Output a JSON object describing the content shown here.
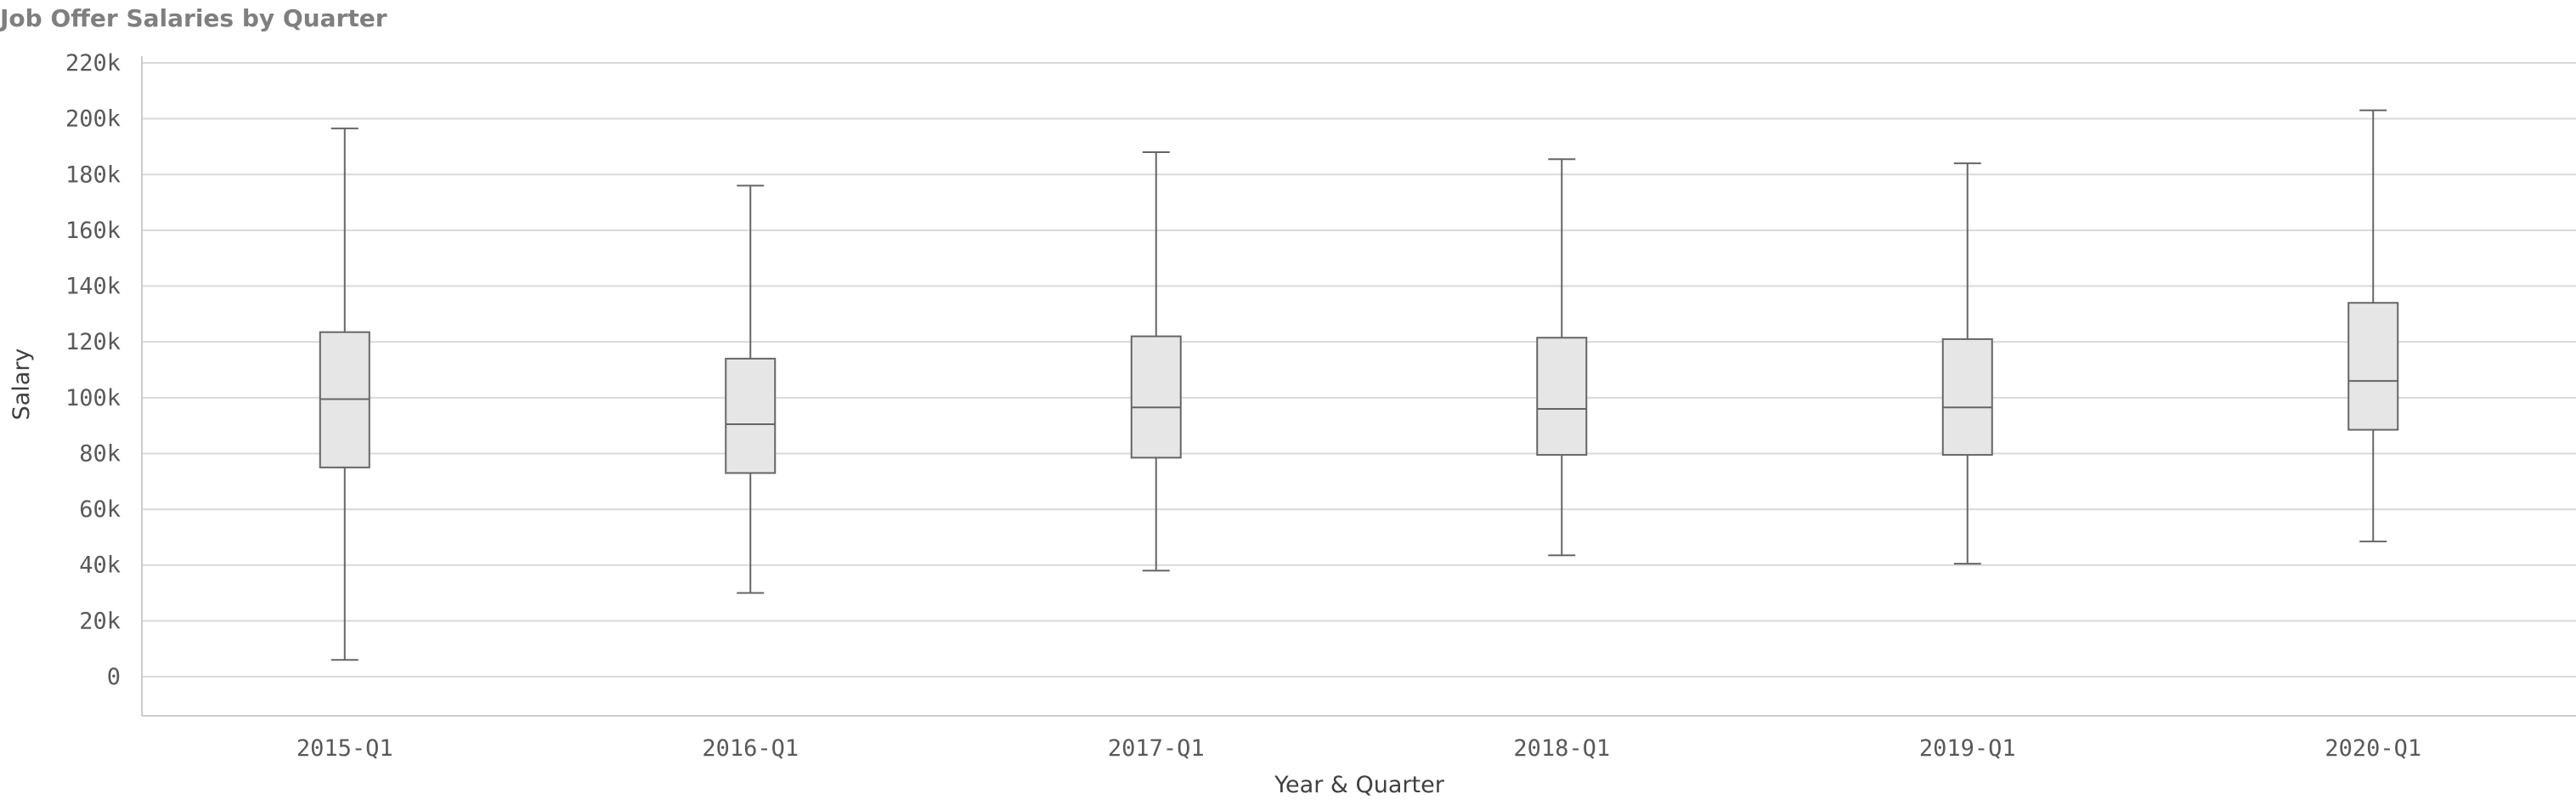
{
  "chart_data": {
    "type": "boxplot",
    "title": "Job Offer Salaries by Quarter",
    "xlabel": "Year & Quarter",
    "ylabel": "Salary",
    "ylim": [
      0,
      220000
    ],
    "yticks": [
      {
        "value": 0,
        "label": "0"
      },
      {
        "value": 20000,
        "label": "20k"
      },
      {
        "value": 40000,
        "label": "40k"
      },
      {
        "value": 60000,
        "label": "60k"
      },
      {
        "value": 80000,
        "label": "80k"
      },
      {
        "value": 100000,
        "label": "100k"
      },
      {
        "value": 120000,
        "label": "120k"
      },
      {
        "value": 140000,
        "label": "140k"
      },
      {
        "value": 160000,
        "label": "160k"
      },
      {
        "value": 180000,
        "label": "180k"
      },
      {
        "value": 200000,
        "label": "200k"
      },
      {
        "value": 220000,
        "label": "220k"
      }
    ],
    "grid": true,
    "categories": [
      "2015-Q1",
      "2016-Q1",
      "2017-Q1",
      "2018-Q1",
      "2019-Q1",
      "2020-Q1"
    ],
    "boxes": [
      {
        "min": 6000,
        "q1": 75000,
        "median": 99500,
        "q3": 123500,
        "max": 196500
      },
      {
        "min": 30000,
        "q1": 73000,
        "median": 90500,
        "q3": 114000,
        "max": 176000
      },
      {
        "min": 38000,
        "q1": 78500,
        "median": 96500,
        "q3": 122000,
        "max": 188000
      },
      {
        "min": 43500,
        "q1": 79500,
        "median": 96000,
        "q3": 121500,
        "max": 185500
      },
      {
        "min": 40500,
        "q1": 79500,
        "median": 96500,
        "q3": 121000,
        "max": 184000
      },
      {
        "min": 48500,
        "q1": 88500,
        "median": 106000,
        "q3": 134000,
        "max": 203000
      }
    ],
    "colors": {
      "box_fill": "#e6e6e6",
      "box_stroke": "#666666",
      "grid": "#d9d9d9",
      "title": "#7f7f7f"
    }
  }
}
